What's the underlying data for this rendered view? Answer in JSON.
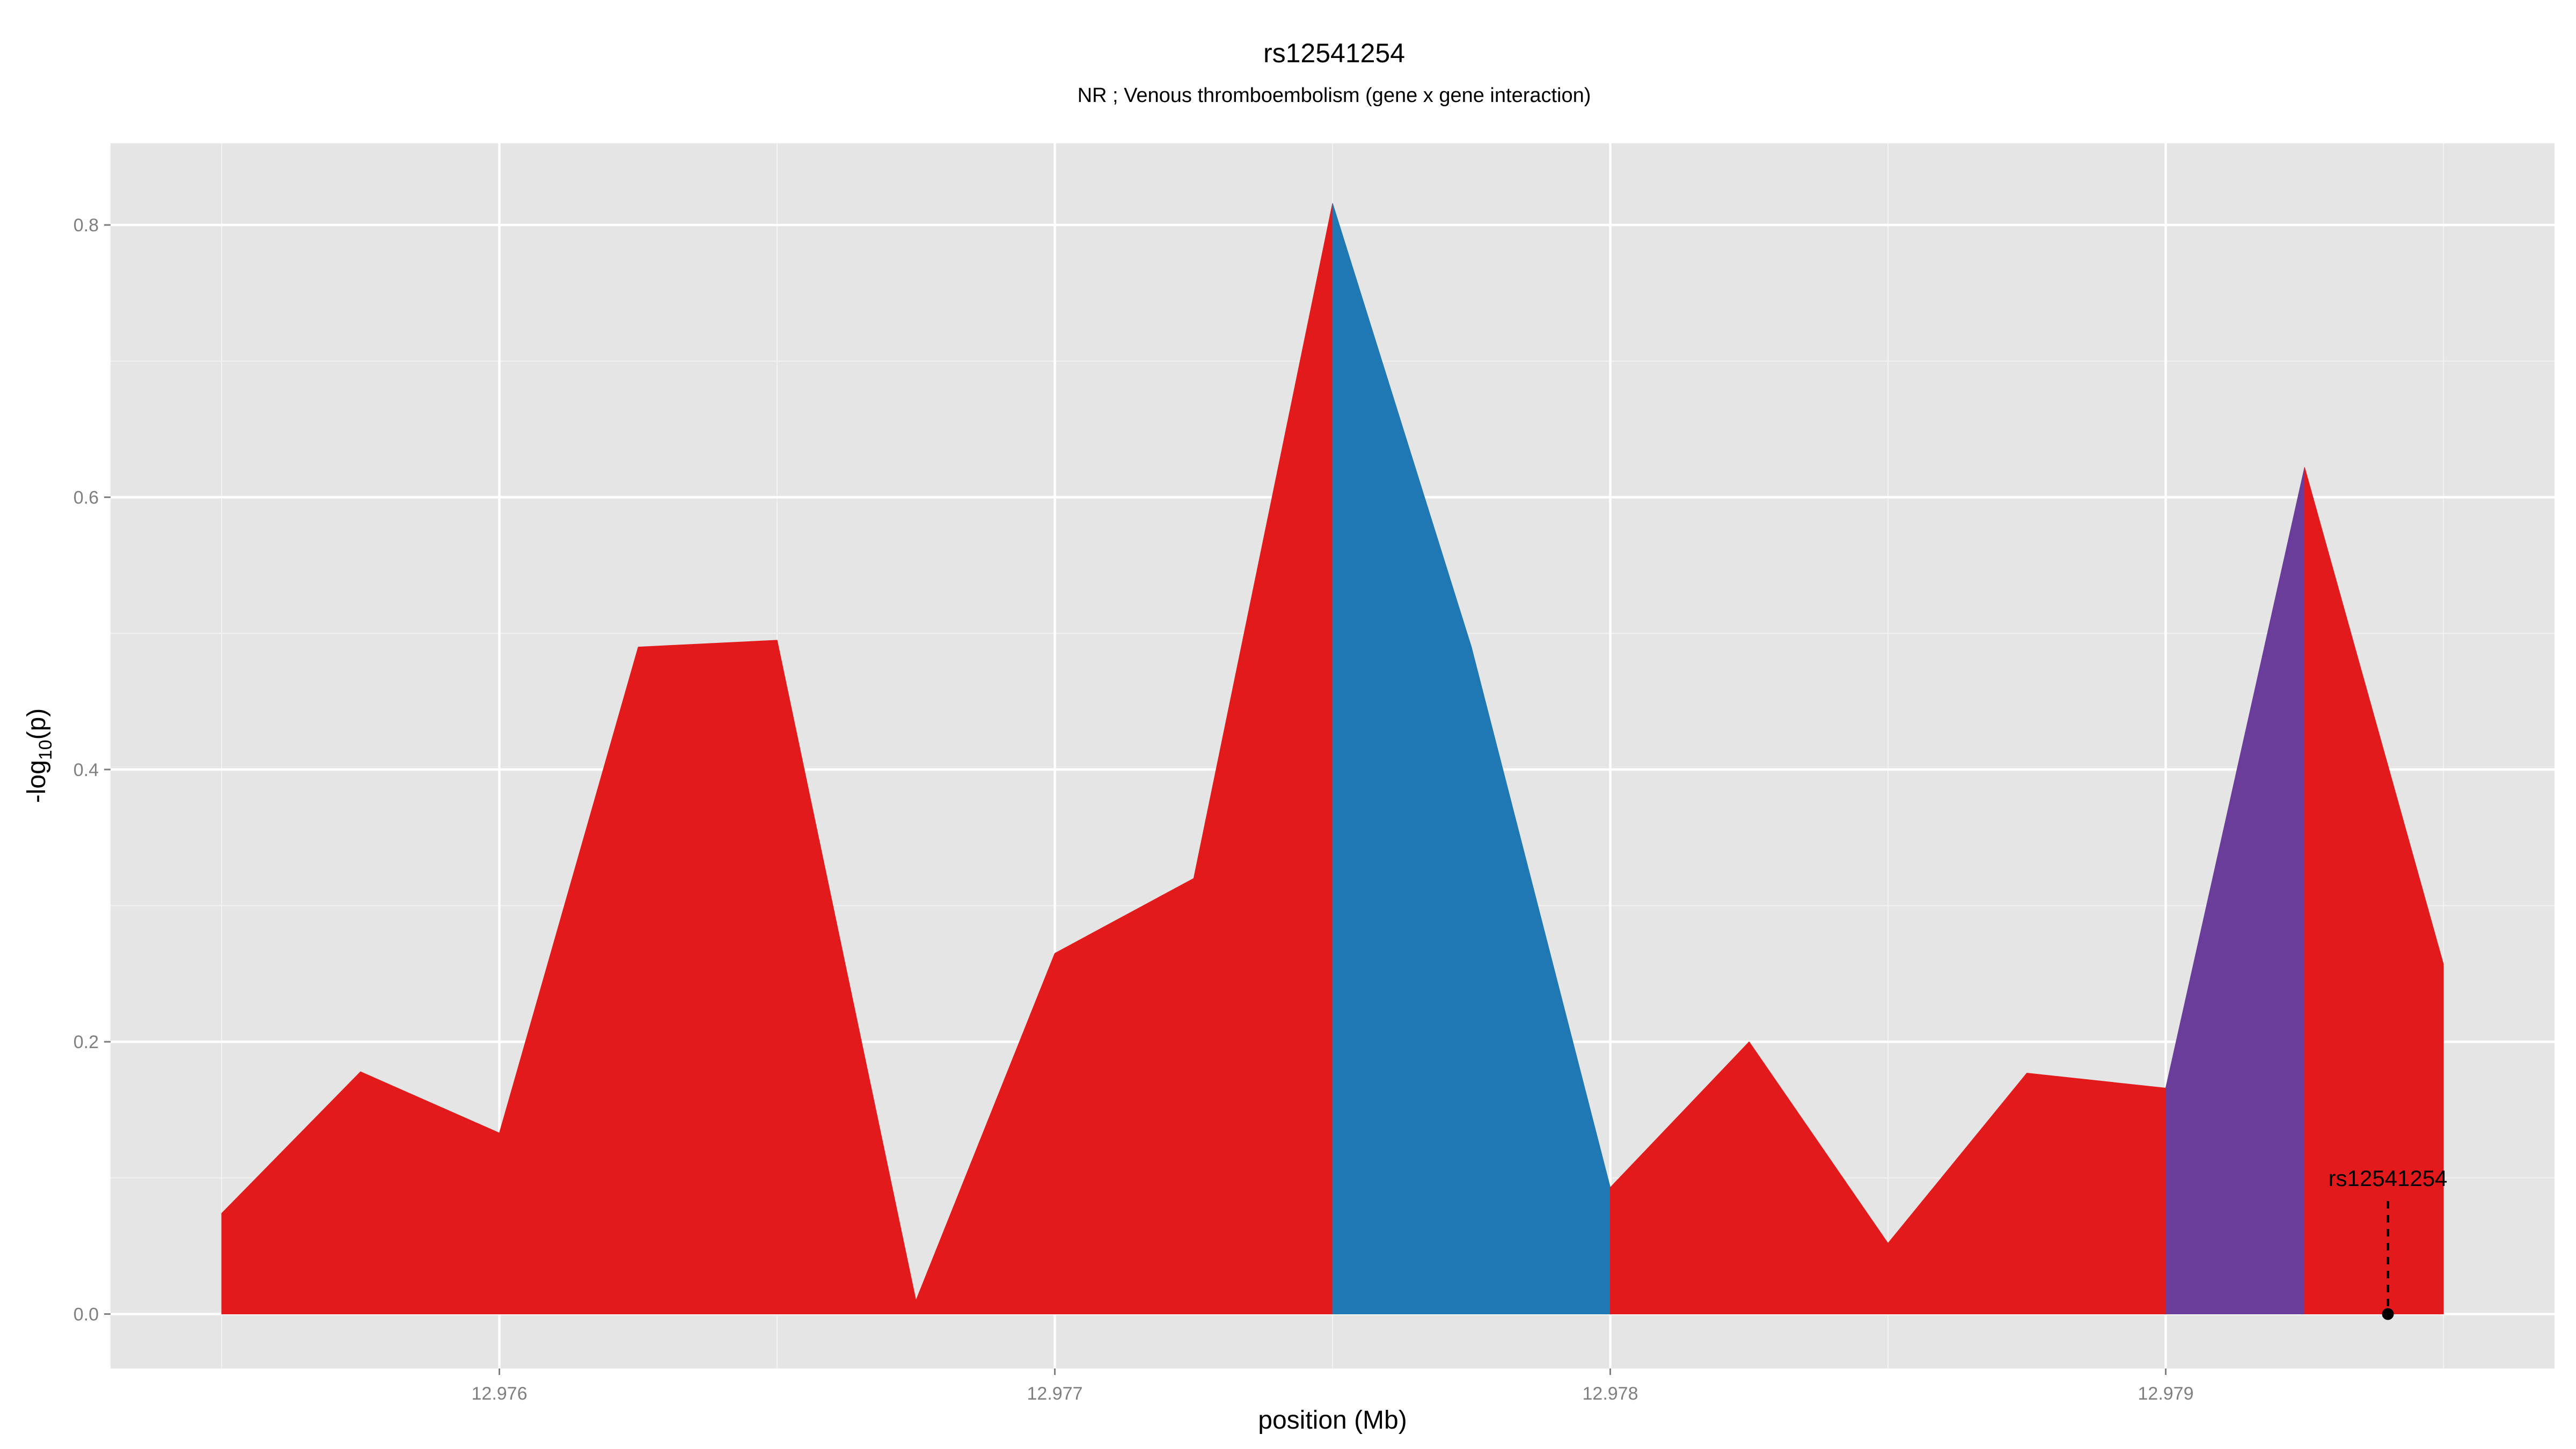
{
  "chart_data": {
    "type": "area",
    "title": "rs12541254",
    "subtitle": "NR ; Venous thromboembolism (gene x gene interaction)",
    "xlabel": "position (Mb)",
    "ylabel_main": "-log",
    "ylabel_sub": "10",
    "ylabel_tail": "(p)",
    "xlim": [
      12.9753,
      12.9797
    ],
    "ylim": [
      -0.04,
      0.86
    ],
    "x_ticks": [
      12.976,
      12.977,
      12.978,
      12.979
    ],
    "x_tick_labels": [
      "12.976",
      "12.977",
      "12.978",
      "12.979"
    ],
    "y_ticks": [
      0.0,
      0.2,
      0.4,
      0.6,
      0.8
    ],
    "y_tick_labels": [
      "0.0",
      "0.2",
      "0.4",
      "0.6",
      "0.8"
    ],
    "grid": true,
    "background": "#e5e5e5",
    "segments": [
      {
        "color": "#e31a1c",
        "x": [
          12.9755,
          12.97575,
          12.976,
          12.97625,
          12.9765,
          12.97675,
          12.977,
          12.97725,
          12.9775
        ],
        "y": [
          0.074,
          0.178,
          0.133,
          0.49,
          0.495,
          0.01,
          0.265,
          0.32,
          0.816
        ]
      },
      {
        "color": "#1f78b4",
        "x": [
          12.9775,
          12.97775,
          12.978
        ],
        "y": [
          0.816,
          0.49,
          0.093
        ]
      },
      {
        "color": "#e31a1c",
        "x": [
          12.978,
          12.97825,
          12.9785,
          12.97875,
          12.979
        ],
        "y": [
          0.093,
          0.2,
          0.052,
          0.177,
          0.166
        ]
      },
      {
        "color": "#6a3d9a",
        "x": [
          12.979,
          12.97925
        ],
        "y": [
          0.166,
          0.622
        ]
      },
      {
        "color": "#e31a1c",
        "x": [
          12.97925,
          12.9795
        ],
        "y": [
          0.622,
          0.257
        ]
      }
    ],
    "annotation": {
      "label": "rs12541254",
      "x": 12.9794,
      "y": 0.0,
      "line_top": 0.083
    }
  }
}
